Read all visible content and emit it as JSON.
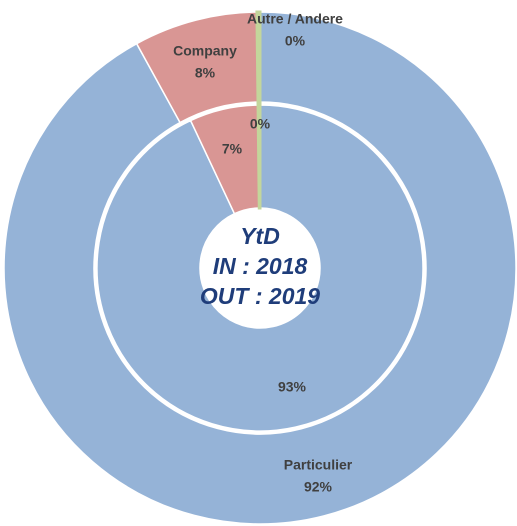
{
  "chart_data": {
    "type": "donut",
    "center_text": [
      "YtD",
      "IN : 2018",
      "OUT : 2019"
    ],
    "categories": [
      "Particulier",
      "Company",
      "Autre / Andere"
    ],
    "colors": [
      "#95b3d7",
      "#d99694",
      "#c3d69b"
    ],
    "series": [
      {
        "values": [
          93,
          7,
          0
        ],
        "value_labels": [
          "93%",
          "7%",
          "0%"
        ]
      },
      {
        "values": [
          92,
          8,
          0
        ],
        "value_labels": [
          "92%",
          "8%",
          "0%"
        ]
      }
    ]
  }
}
